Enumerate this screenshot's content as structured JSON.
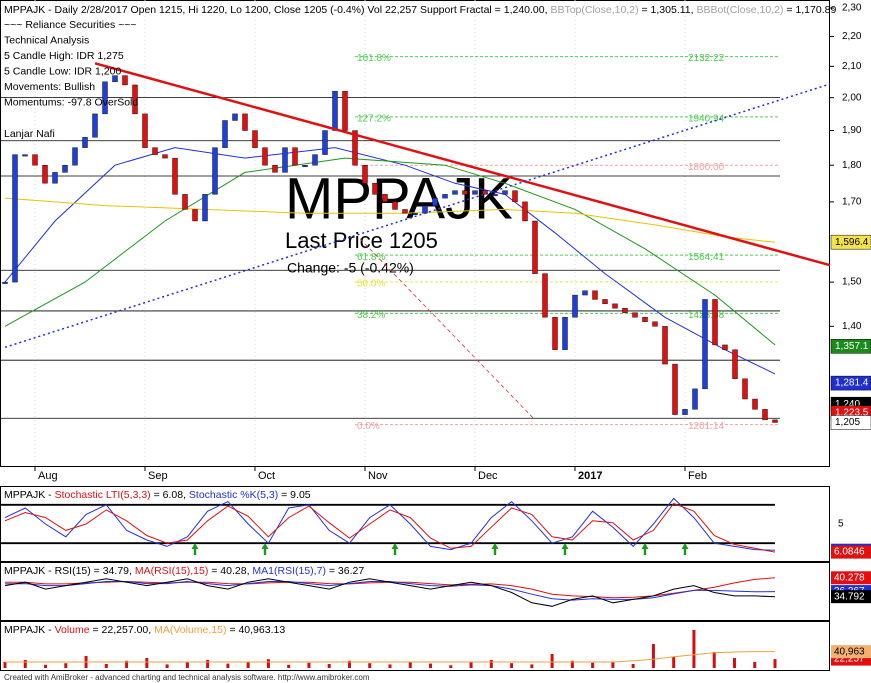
{
  "chart_data": {
    "type": "candlestick",
    "header": [
      {
        "text": "MPPAJK - Daily 2/28/2017 Open 1215, Hi 1220, Lo 1200, Close 1205 (-0.4%) Vol 22,257 Support Fractal = 1,240.00, ",
        "color": "#000000"
      },
      {
        "text": "BBTop(Close,10,2)",
        "color": "#a0a0a0"
      },
      {
        "text": " = 1,305.11, ",
        "color": "#000000"
      },
      {
        "text": "BBBot(Close,10,2)",
        "color": "#a0a0a0"
      },
      {
        "text": " = 1,170.89",
        "color": "#000000"
      }
    ],
    "notes": [
      "~~~ Reliance Securities ~~~",
      "Technical Analysis",
      "5 Candle High: IDR 1,275",
      "5 Candle Low: IDR 1,200",
      "Movements: Bullish",
      "Momentums: -97.8 OverSold",
      "Lanjar Nafi"
    ],
    "watermark": "MPPAJK",
    "last_price": "Last Price 1205",
    "change": "Change: -5 (-0.42%)",
    "categories": [
      null,
      null,
      null,
      "Aug",
      null,
      null,
      null,
      null,
      null,
      null,
      null,
      null,
      null,
      null,
      "Sep",
      null,
      null,
      null,
      null,
      null,
      null,
      null,
      null,
      null,
      null,
      "Oct",
      null,
      null,
      null,
      null,
      null,
      null,
      null,
      null,
      null,
      null,
      "Nov",
      null,
      null,
      null,
      null,
      null,
      null,
      null,
      null,
      null,
      null,
      "Dec",
      null,
      null,
      null,
      null,
      null,
      null,
      null,
      null,
      null,
      "2017",
      null,
      null,
      null,
      null,
      null,
      null,
      null,
      null,
      null,
      null,
      "Feb",
      null,
      null,
      null,
      null,
      null,
      null,
      null,
      null,
      null
    ],
    "close": [
      1500,
      1830,
      1830,
      1800,
      1750,
      1780,
      1800,
      1850,
      1880,
      1950,
      2050,
      2070,
      2040,
      1950,
      1850,
      1830,
      1820,
      1720,
      1680,
      1650,
      1720,
      1850,
      1930,
      1950,
      1900,
      1850,
      1800,
      1780,
      1850,
      1800,
      1800,
      1830,
      1900,
      2020,
      1900,
      1800,
      1750,
      1720,
      1700,
      1680,
      1670,
      1670,
      1690,
      1710,
      1720,
      1730,
      1720,
      1730,
      1720,
      1720,
      1730,
      1700,
      1650,
      1520,
      1420,
      1350,
      1420,
      1470,
      1480,
      1460,
      1450,
      1440,
      1430,
      1420,
      1410,
      1400,
      1320,
      1220,
      1230,
      1270,
      1460,
      1360,
      1350,
      1290,
      1250,
      1230,
      1210,
      1205
    ],
    "up_color": "#1f3fd9",
    "down_color": "#e01010",
    "log_scale": true,
    "ylim": [
      1126,
      2329
    ],
    "yticks": [
      {
        "value": 2300,
        "label": "2,30"
      },
      {
        "value": 2200,
        "label": "2,20"
      },
      {
        "value": 2100,
        "label": "2,10"
      },
      {
        "value": 2000,
        "label": "2,00"
      },
      {
        "value": 1900,
        "label": "1,90"
      },
      {
        "value": 1800,
        "label": "1,80"
      },
      {
        "value": 1700,
        "label": "1,70"
      },
      {
        "value": 1500,
        "label": "1,50"
      },
      {
        "value": 1400,
        "label": "1,40"
      }
    ],
    "hlines": [
      2000,
      1870,
      1770,
      1528,
      1434,
      1328,
      1213
    ],
    "levels": [
      {
        "pct": "161.8%",
        "value": 2132.22,
        "value_label": "2132.22",
        "color": "#4fcf4f"
      },
      {
        "pct": "127.2%",
        "value": 1940.94,
        "value_label": "1940.94",
        "color": "#4fcf4f"
      },
      {
        "value": 1800,
        "value_label": "1800.00",
        "color": "#f4a0a0"
      },
      {
        "pct": "61.8%",
        "value": 1564.41,
        "value_label": "1564.41",
        "color": "#4fcf4f"
      },
      {
        "pct": "50.0%",
        "value": 1500.57,
        "color": "#e6e640"
      },
      {
        "pct": "38.2%",
        "value": 1428.68,
        "value_label": "1428.68",
        "color": "#4fcf4f"
      },
      {
        "pct": "0.0%",
        "value": 1201.14,
        "value_label": "1201.14",
        "color": "#f4a0a0"
      }
    ],
    "overlays": [
      {
        "color": "#2030e0",
        "x": [
          0,
          5,
          11,
          17,
          24,
          33,
          40,
          45,
          50,
          55,
          60,
          66,
          72,
          77
        ],
        "values": [
          1500,
          1650,
          1800,
          1850,
          1820,
          1850,
          1800,
          1750,
          1720,
          1620,
          1520,
          1420,
          1350,
          1300
        ]
      },
      {
        "color": "#1a9a1a",
        "x": [
          0,
          8,
          16,
          24,
          34,
          44,
          50,
          57,
          64,
          71,
          77
        ],
        "values": [
          1400,
          1500,
          1650,
          1780,
          1820,
          1800,
          1750,
          1680,
          1580,
          1470,
          1360
        ]
      },
      {
        "color": "#e8c400",
        "x": [
          0,
          10,
          20,
          30,
          40,
          50,
          57,
          65,
          72,
          77
        ],
        "values": [
          1710,
          1690,
          1680,
          1670,
          1670,
          1680,
          1670,
          1640,
          1610,
          1596
        ]
      }
    ],
    "trendlines": [
      {
        "color": "#e01010",
        "x": [
          9,
          82.5
        ],
        "values": [
          2110,
          1540
        ],
        "width": 2.5,
        "dash": "none"
      },
      {
        "color": "#2030e0",
        "x": [
          0,
          82.5
        ],
        "values": [
          1355,
          2043
        ],
        "width": 1.5,
        "dash": "2 3"
      },
      {
        "color": "#e03030",
        "x": [
          35.5,
          53
        ],
        "values": [
          1605,
          1210
        ],
        "width": 0.8,
        "dash": "4 3"
      }
    ],
    "price_labels": [
      {
        "value": 1596.4,
        "label": "1,596.4",
        "bg": "#f3e24a",
        "fg": "#000000"
      },
      {
        "value": 1357.1,
        "label": "1,357.1",
        "bg": "#1a8a1a",
        "fg": "#ffffff"
      },
      {
        "value": 1281.4,
        "label": "1,281.4",
        "bg": "#1f2fd0",
        "fg": "#ffffff"
      },
      {
        "value": 1240,
        "label": "1,240",
        "bg": "#000000",
        "fg": "#ffffff"
      },
      {
        "value": 1223.5,
        "label": "1,223.5",
        "bg": "#e01010",
        "fg": "#ffffff"
      },
      {
        "value": 1205,
        "label": "1,205",
        "bg": "#ffffff",
        "fg": "#000000"
      }
    ],
    "panels": [
      {
        "title": [
          {
            "text": "MPPAJK - ",
            "color": "#000000"
          },
          {
            "text": "Stochastic LTI(5,3,3)",
            "color": "#e01010"
          },
          {
            "text": " = 6.08, ",
            "color": "#000000"
          },
          {
            "text": "Stochastic %K(5,3)",
            "color": "#2030e0"
          },
          {
            "text": " = 9.05",
            "color": "#000000"
          }
        ],
        "ylim": [
          0,
          100
        ],
        "yticks": [
          {
            "value": 50,
            "label": "5"
          }
        ],
        "levels": [
          80,
          20
        ],
        "signals": [
          19,
          26,
          39,
          49,
          56,
          64,
          68
        ],
        "signal_color": "#1a9a1a",
        "series": [
          {
            "color": "#2030e0",
            "style": "line",
            "label_bg": "#1f2fd0",
            "label_fg": "#ffffff",
            "values": [
              60,
              75,
              50,
              30,
              65,
              80,
              40,
              25,
              15,
              30,
              70,
              85,
              50,
              20,
              75,
              80,
              40,
              20,
              60,
              80,
              50,
              15,
              10,
              20,
              60,
              85,
              55,
              20,
              30,
              70,
              45,
              15,
              50,
              90,
              60,
              20,
              15,
              10,
              9.0476
            ]
          },
          {
            "color": "#e01010",
            "style": "line",
            "label_bg": "#e01010",
            "label_fg": "#ffffff",
            "values": [
              55,
              68,
              60,
              40,
              50,
              72,
              55,
              32,
              20,
              25,
              55,
              78,
              62,
              30,
              60,
              78,
              52,
              28,
              50,
              72,
              60,
              28,
              12,
              15,
              45,
              75,
              65,
              30,
              25,
              55,
              52,
              25,
              40,
              82,
              70,
              32,
              18,
              12,
              6.0846
            ]
          }
        ]
      },
      {
        "title": [
          {
            "text": "MPPAJK - ",
            "color": "#000000"
          },
          {
            "text": "RSI(15)",
            "color": "#000000"
          },
          {
            "text": " = 34.79, ",
            "color": "#000000"
          },
          {
            "text": "MA(RSI(15),15)",
            "color": "#e01010"
          },
          {
            "text": " = 40.28, ",
            "color": "#000000"
          },
          {
            "text": "MA1(RSI(15),7)",
            "color": "#2030e0"
          },
          {
            "text": " = 36.27",
            "color": "#000000"
          }
        ],
        "ylim": [
          28,
          44
        ],
        "series": [
          {
            "color": "#e01010",
            "style": "line",
            "label_bg": "#e01010",
            "label_fg": "#ffffff",
            "values": [
              39,
              39,
              38.5,
              38.5,
              38.8,
              39,
              39.2,
              39,
              38.8,
              39,
              39,
              38.6,
              38.5,
              38.8,
              39,
              39,
              38.6,
              38.5,
              38.8,
              39,
              39,
              38.6,
              38.2,
              38.4,
              38.5,
              38,
              37,
              35.5,
              35,
              34.8,
              34.5,
              34.6,
              35,
              35.8,
              36.6,
              37.5,
              38.8,
              39.8,
              40.278
            ]
          },
          {
            "color": "#2030e0",
            "style": "line",
            "label_bg": "#1f2fd0",
            "label_fg": "#ffffff",
            "values": [
              38.5,
              38.6,
              38,
              38,
              38.6,
              39.2,
              39.2,
              38.6,
              38.6,
              39.2,
              38.6,
              38,
              38.6,
              39.2,
              39.2,
              38.6,
              38,
              38.6,
              39.2,
              39.2,
              38.6,
              38,
              37.8,
              38.2,
              38,
              37,
              35.5,
              34.2,
              33.8,
              34.2,
              34,
              34,
              34.5,
              35.6,
              36.6,
              36.6,
              36.4,
              36.2,
              36.267
            ]
          },
          {
            "color": "#000000",
            "style": "line",
            "label_bg": "#000000",
            "label_fg": "#ffffff",
            "values": [
              38,
              39,
              37,
              38,
              39,
              40,
              39,
              38,
              39,
              40,
              38,
              37,
              39,
              40,
              39,
              38,
              37,
              39,
              40,
              39,
              38,
              37,
              38,
              39,
              38,
              36,
              33,
              32,
              34,
              35,
              33,
              34,
              35,
              37,
              38,
              36,
              35,
              35,
              34.792
            ]
          }
        ]
      },
      {
        "title": [
          {
            "text": "MPPAJK - ",
            "color": "#000000"
          },
          {
            "text": "Volume",
            "color": "#e01010"
          },
          {
            "text": " = 22,257.00, ",
            "color": "#000000"
          },
          {
            "text": "MA(Volume,15)",
            "color": "#f0a040"
          },
          {
            "text": " = 40,963.13",
            "color": "#000000"
          }
        ],
        "ylim": [
          0,
          100000
        ],
        "series": [
          {
            "color": "#d01010",
            "style": "bar",
            "label_bg": "#e01010",
            "label_fg": "#ffffff",
            "value_label": "22,257",
            "values": [
              15000,
              20000,
              8000,
              12000,
              30000,
              10000,
              18000,
              25000,
              9000,
              14000,
              20000,
              11000,
              16000,
              22000,
              8000,
              13000,
              10000,
              18000,
              12000,
              9000,
              15000,
              11000,
              7000,
              14000,
              20000,
              12000,
              9000,
              35000,
              18000,
              13000,
              16000,
              10000,
              60000,
              28000,
              95000,
              40000,
              25000,
              15000,
              22257
            ]
          },
          {
            "color": "#f0a040",
            "style": "line",
            "label_bg": "#f3b070",
            "label_fg": "#000000",
            "value_label": "40,963",
            "values": [
              15000,
              15000,
              15000,
              15000,
              15000,
              15000,
              15000,
              15000,
              15000,
              15000,
              15000,
              15000,
              15000,
              15000,
              15000,
              15000,
              15000,
              15000,
              15000,
              15000,
              15000,
              15000,
              15000,
              15000,
              15000,
              15000,
              15000,
              15000,
              15000,
              15000,
              15000,
              18000,
              22000,
              28000,
              33000,
              38000,
              40000,
              41000,
              40963.13
            ]
          }
        ]
      }
    ],
    "footer": "Created with AmiBroker - advanced charting and technical analysis software. http://www.amibroker.com"
  }
}
